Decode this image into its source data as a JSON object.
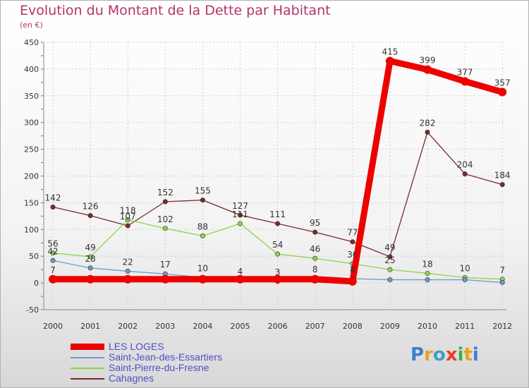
{
  "title": "Evolution du Montant de la Dette par Habitant",
  "subtitle": "(en €)",
  "logo": "Proxiti",
  "chart_data": {
    "type": "line",
    "x": [
      "2000",
      "2001",
      "2002",
      "2003",
      "2004",
      "2005",
      "2006",
      "2007",
      "2008",
      "2009",
      "2010",
      "2011",
      "2012"
    ],
    "yticks": [
      -50,
      0,
      50,
      100,
      150,
      200,
      250,
      300,
      350,
      400,
      450
    ],
    "ylim": [
      -50,
      450
    ],
    "grid": true,
    "legend_position": "bottom-left",
    "series": [
      {
        "name": "LES LOGES",
        "color": "#ee0000",
        "values": [
          7,
          7,
          7,
          7,
          7,
          7,
          7,
          7,
          3,
          415,
          399,
          377,
          357
        ],
        "labels": [
          "7",
          "",
          "",
          "",
          "",
          "",
          "",
          "",
          "",
          "415",
          "399",
          "377",
          "357"
        ]
      },
      {
        "name": "Saint-Jean-des-Essartiers",
        "color": "#6a9ccc",
        "values": [
          42,
          28,
          22,
          17,
          10,
          4,
          3,
          8,
          8,
          6,
          6,
          6,
          1
        ],
        "labels": [
          "42",
          "28",
          "22",
          "17",
          "10",
          "4",
          "3",
          "8",
          "8",
          "",
          "",
          "",
          ""
        ]
      },
      {
        "name": "Saint-Pierre-du-Fresne",
        "color": "#8fd24a",
        "values": [
          56,
          49,
          118,
          102,
          88,
          111,
          54,
          46,
          36,
          25,
          18,
          10,
          7
        ],
        "labels": [
          "56",
          "49",
          "118",
          "102",
          "88",
          "111",
          "54",
          "46",
          "36",
          "25",
          "18",
          "10",
          "7"
        ]
      },
      {
        "name": "Cahagnes",
        "color": "#7a2a2a",
        "values": [
          142,
          126,
          107,
          152,
          155,
          127,
          111,
          95,
          77,
          49,
          282,
          204,
          184
        ],
        "labels": [
          "142",
          "126",
          "107",
          "152",
          "155",
          "127",
          "111",
          "95",
          "77",
          "49",
          "282",
          "204",
          "184"
        ]
      }
    ]
  }
}
